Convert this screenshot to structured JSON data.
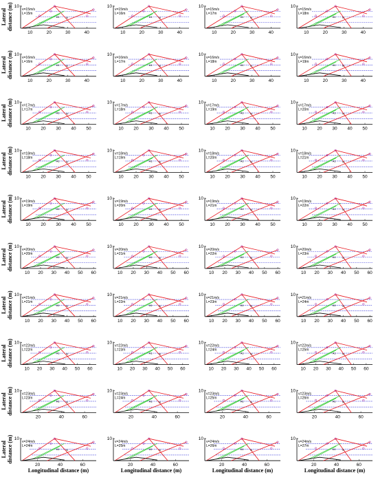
{
  "figure": {
    "ylabel_line1": "Lateral",
    "ylabel_line2": "distance (m)",
    "xlabel": "Longitudinal distance (m)"
  },
  "colors": {
    "red": "#e8141c",
    "green": "#33cc33",
    "blue": "#1f1fd6",
    "black": "#000000",
    "marker": "#a01a9c"
  },
  "chart_data": {
    "type": "line",
    "description_of_series": [
      "red trajectories",
      "green trajectories",
      "black trajectory",
      "blue dashed lane lines"
    ],
    "ylim": [
      0,
      10
    ],
    "ytick_top_label": "10",
    "rows": [
      {
        "v": "v=15m/s",
        "xlim": [
          5,
          45
        ],
        "xticks": [
          10,
          20,
          30,
          40
        ],
        "L": [
          "L=15m",
          "L=16m",
          "L=17m",
          "L=18m"
        ]
      },
      {
        "v": "v=16m/s",
        "xlim": [
          5,
          45
        ],
        "xticks": [
          10,
          20,
          30,
          40
        ],
        "L": [
          "L=16m",
          "L=17m",
          "L=18m",
          "L=19m"
        ]
      },
      {
        "v": "v=17m/s",
        "xlim": [
          5,
          55
        ],
        "xticks": [
          10,
          20,
          30,
          40,
          50
        ],
        "L": [
          "L=17m",
          "L=18m",
          "L=19m",
          "L=20m"
        ]
      },
      {
        "v": "v=18m/s",
        "xlim": [
          5,
          55
        ],
        "xticks": [
          10,
          20,
          30,
          40,
          50
        ],
        "L": [
          "L=18m",
          "L=19m",
          "L=20m",
          "L=21m"
        ]
      },
      {
        "v": "v=19m/s",
        "xlim": [
          5,
          55
        ],
        "xticks": [
          10,
          20,
          30,
          40,
          50
        ],
        "L": [
          "L=19m",
          "L=20m",
          "L=21m",
          "L=22m"
        ]
      },
      {
        "v": "v=20m/s",
        "xlim": [
          5,
          62
        ],
        "xticks": [
          10,
          20,
          30,
          40,
          50,
          60
        ],
        "L": [
          "L=20m",
          "L=21m",
          "L=22m",
          "L=23m"
        ]
      },
      {
        "v": "v=21m/s",
        "xlim": [
          5,
          62
        ],
        "xticks": [
          10,
          20,
          30,
          40,
          50,
          60
        ],
        "L": [
          "L=21m",
          "L=22m",
          "L=23m",
          "L=24m"
        ]
      },
      {
        "v": "v=22m/s",
        "xlim": [
          5,
          65
        ],
        "xticks": [
          10,
          20,
          30,
          40,
          50,
          60
        ],
        "L": [
          "L=22m",
          "L=23m",
          "L=24m",
          "L=25m"
        ]
      },
      {
        "v": "v=23m/s",
        "xlim": [
          5,
          70
        ],
        "xticks": [
          20,
          40,
          60
        ],
        "L": [
          "L=23m",
          "L=24m",
          "L=25m",
          "L=26m"
        ]
      },
      {
        "v": "v=24m/s",
        "xlim": [
          5,
          72
        ],
        "xticks": [
          20,
          40,
          60
        ],
        "L": [
          "L=24m",
          "L=25m",
          "L=26m",
          "L=27m"
        ]
      }
    ]
  }
}
